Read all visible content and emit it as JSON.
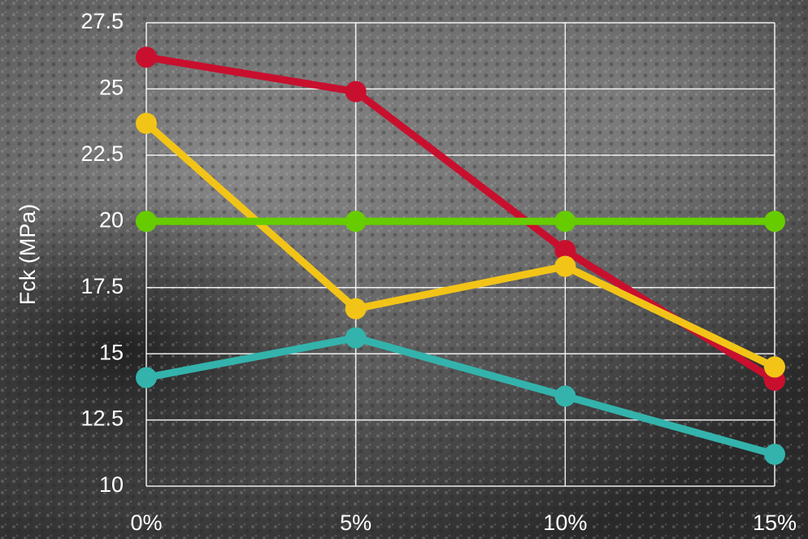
{
  "chart_data": {
    "type": "line",
    "y_label": "Fck (MPa)",
    "categories": [
      "0%",
      "5%",
      "10%",
      "15%"
    ],
    "series": [
      {
        "color": "#c8102e",
        "values": [
          26.2,
          24.9,
          18.9,
          14.0
        ]
      },
      {
        "color": "#f2c418",
        "values": [
          23.7,
          16.7,
          18.3,
          14.5
        ]
      },
      {
        "color": "#66cc00",
        "values": [
          20,
          20,
          20,
          20
        ]
      },
      {
        "color": "#33b3ac",
        "values": [
          14.1,
          15.6,
          13.4,
          11.2
        ]
      }
    ],
    "ylim": [
      10,
      27.5
    ],
    "yticks": [
      10,
      12.5,
      15,
      17.5,
      20,
      22.5,
      25,
      27.5
    ],
    "grid": true
  }
}
